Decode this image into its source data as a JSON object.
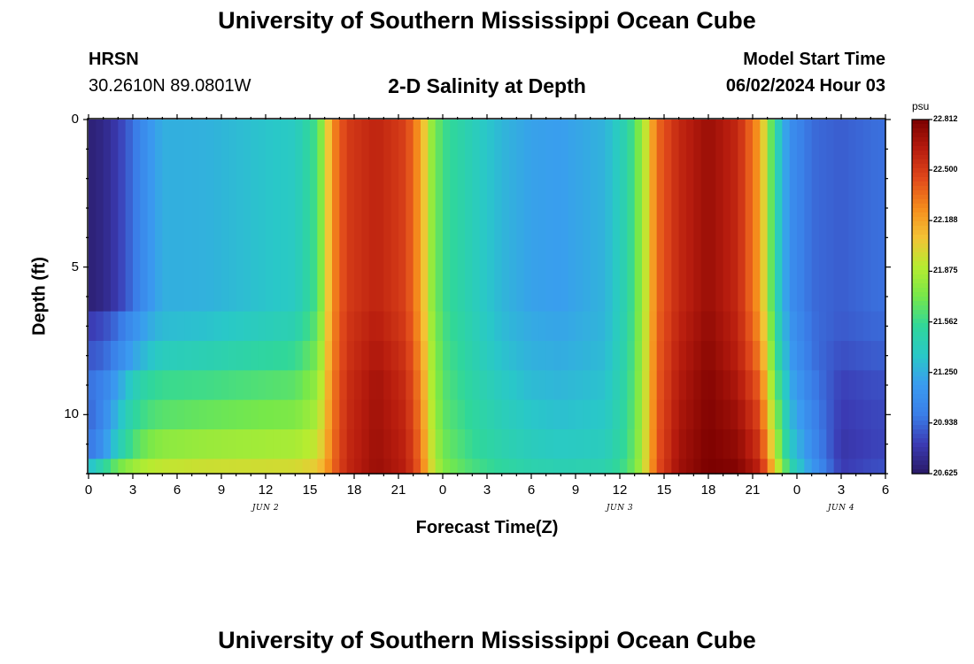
{
  "page_title_top": "University of Southern Mississippi Ocean Cube",
  "page_title_bottom": "University of Southern Mississippi Ocean Cube",
  "station": {
    "code": "HRSN",
    "coords": "30.2610N  89.0801W"
  },
  "plot_title": "2-D Salinity at Depth",
  "model": {
    "label": "Model Start Time",
    "time": "06/02/2024 Hour 03"
  },
  "colors": {
    "scale": [
      "#2a1a66",
      "#3b3bb4",
      "#3a7ee8",
      "#3a9bf0",
      "#29c8c8",
      "#30d79a",
      "#76e84a",
      "#b6ec30",
      "#f4c335",
      "#f58b1c",
      "#e0481b",
      "#b71c0e",
      "#7a0000"
    ]
  },
  "chart_data": {
    "type": "heatmap",
    "title": "2-D Salinity at Depth",
    "xlabel": "Forecast Time(Z)",
    "ylabel": "Depth (ft)",
    "xlim": [
      0,
      54
    ],
    "ylim": [
      0,
      12
    ],
    "x_tick_values": [
      0,
      3,
      6,
      9,
      12,
      15,
      18,
      21,
      24,
      27,
      30,
      33,
      36,
      39,
      42,
      45,
      48,
      51,
      54
    ],
    "x_tick_labels": [
      "0",
      "3",
      "6",
      "9",
      "12",
      "15",
      "18",
      "21",
      "0",
      "3",
      "6",
      "9",
      "12",
      "15",
      "18",
      "21",
      "0",
      "3",
      "6"
    ],
    "y_tick_values": [
      0,
      5,
      10
    ],
    "y_tick_labels": [
      "0",
      "5",
      "10"
    ],
    "date_labels": [
      {
        "label": "JUN 2",
        "x": 12
      },
      {
        "label": "JUN 3",
        "x": 36
      },
      {
        "label": "JUN 4",
        "x": 51
      }
    ],
    "colorbar": {
      "unit": "psu",
      "min": 20.625,
      "max": 22.812,
      "tick_values": [
        20.625,
        20.938,
        21.25,
        21.562,
        21.875,
        22.188,
        22.5,
        22.812
      ],
      "tick_labels": [
        "20.625",
        "20.938",
        "21.250",
        "21.562",
        "21.875",
        "22.188",
        "22.500",
        "22.812"
      ]
    },
    "time_hours": [
      0,
      0.5,
      1,
      1.5,
      2,
      2.5,
      3,
      3.5,
      4,
      4.5,
      5,
      5.5,
      6,
      6.5,
      7,
      7.5,
      8,
      8.5,
      9,
      9.5,
      10,
      10.5,
      11,
      11.5,
      12,
      12.5,
      13,
      13.5,
      14,
      14.5,
      15,
      15.5,
      16,
      16.5,
      17,
      17.5,
      18,
      18.5,
      19,
      19.5,
      20,
      20.5,
      21,
      21.5,
      22,
      22.5,
      23,
      23.5,
      24,
      24.5,
      25,
      25.5,
      26,
      26.5,
      27,
      27.5,
      28,
      28.5,
      29,
      29.5,
      30,
      30.5,
      31,
      31.5,
      32,
      32.5,
      33,
      33.5,
      34,
      34.5,
      35,
      35.5,
      36,
      36.5,
      37,
      37.5,
      38,
      38.5,
      39,
      39.5,
      40,
      40.5,
      41,
      41.5,
      42,
      42.5,
      43,
      43.5,
      44,
      44.5,
      45,
      45.5,
      46,
      46.5,
      47,
      47.5,
      48,
      48.5,
      49,
      49.5,
      50,
      50.5,
      51,
      51.5,
      52,
      52.5,
      53,
      53.5
    ],
    "depth_bands_ft": [
      [
        0,
        6.5
      ],
      [
        6.5,
        7.5
      ],
      [
        7.5,
        8.5
      ],
      [
        8.5,
        9.5
      ],
      [
        9.5,
        10.5
      ],
      [
        10.5,
        11.5
      ],
      [
        11.5,
        12
      ]
    ],
    "profile_keyframes": [
      {
        "t": 0,
        "s": [
          20.66,
          20.8,
          20.88,
          20.95,
          20.92,
          20.95,
          21.3
        ]
      },
      {
        "t": 1,
        "s": [
          20.7,
          20.85,
          20.92,
          21.02,
          21.05,
          21.12,
          21.5
        ]
      },
      {
        "t": 2,
        "s": [
          20.8,
          20.95,
          21.05,
          21.2,
          21.3,
          21.4,
          21.7
        ]
      },
      {
        "t": 3,
        "s": [
          20.95,
          21.1,
          21.2,
          21.4,
          21.5,
          21.6,
          21.82
        ]
      },
      {
        "t": 4,
        "s": [
          21.12,
          21.22,
          21.32,
          21.52,
          21.6,
          21.72,
          21.9
        ]
      },
      {
        "t": 5,
        "s": [
          21.25,
          21.3,
          21.4,
          21.56,
          21.64,
          21.78,
          21.93
        ]
      },
      {
        "t": 8,
        "s": [
          21.26,
          21.33,
          21.44,
          21.58,
          21.68,
          21.82,
          21.96
        ]
      },
      {
        "t": 14,
        "s": [
          21.38,
          21.45,
          21.55,
          21.65,
          21.74,
          21.86,
          21.98
        ]
      },
      {
        "t": 15.5,
        "s": [
          21.6,
          21.66,
          21.72,
          21.8,
          21.86,
          21.94,
          22.05
        ]
      },
      {
        "t": 16,
        "s": [
          21.9,
          21.94,
          21.98,
          22.02,
          22.06,
          22.1,
          22.18
        ]
      },
      {
        "t": 16.5,
        "s": [
          22.25,
          22.26,
          22.27,
          22.29,
          22.3,
          22.32,
          22.34
        ]
      },
      {
        "t": 17.5,
        "s": [
          22.5,
          22.52,
          22.53,
          22.55,
          22.56,
          22.57,
          22.58
        ]
      },
      {
        "t": 19.5,
        "s": [
          22.6,
          22.63,
          22.66,
          22.69,
          22.7,
          22.71,
          22.72
        ]
      },
      {
        "t": 21.5,
        "s": [
          22.48,
          22.5,
          22.53,
          22.56,
          22.58,
          22.6,
          22.62
        ]
      },
      {
        "t": 22.5,
        "s": [
          22.2,
          22.22,
          22.25,
          22.28,
          22.3,
          22.33,
          22.36
        ]
      },
      {
        "t": 23.2,
        "s": [
          21.82,
          21.85,
          21.88,
          21.9,
          21.93,
          21.96,
          22.0
        ]
      },
      {
        "t": 24,
        "s": [
          21.58,
          21.6,
          21.62,
          21.64,
          21.66,
          21.7,
          21.75
        ]
      },
      {
        "t": 26,
        "s": [
          21.42,
          21.44,
          21.46,
          21.49,
          21.52,
          21.55,
          21.6
        ]
      },
      {
        "t": 28,
        "s": [
          21.28,
          21.3,
          21.33,
          21.38,
          21.42,
          21.46,
          21.52
        ]
      },
      {
        "t": 30,
        "s": [
          21.2,
          21.23,
          21.26,
          21.3,
          21.35,
          21.4,
          21.46
        ]
      },
      {
        "t": 32,
        "s": [
          21.18,
          21.21,
          21.24,
          21.28,
          21.32,
          21.37,
          21.44
        ]
      },
      {
        "t": 35,
        "s": [
          21.27,
          21.28,
          21.3,
          21.33,
          21.36,
          21.4,
          21.46
        ]
      },
      {
        "t": 36.5,
        "s": [
          21.48,
          21.49,
          21.5,
          21.52,
          21.54,
          21.56,
          21.6
        ]
      },
      {
        "t": 37.5,
        "s": [
          21.8,
          21.81,
          21.82,
          21.83,
          21.84,
          21.85,
          21.87
        ]
      },
      {
        "t": 38.5,
        "s": [
          22.35,
          22.36,
          22.37,
          22.38,
          22.39,
          22.4,
          22.42
        ]
      },
      {
        "t": 40,
        "s": [
          22.58,
          22.6,
          22.62,
          22.64,
          22.66,
          22.68,
          22.7
        ]
      },
      {
        "t": 42,
        "s": [
          22.72,
          22.74,
          22.76,
          22.78,
          22.79,
          22.8,
          22.81
        ]
      },
      {
        "t": 44,
        "s": [
          22.58,
          22.6,
          22.62,
          22.66,
          22.7,
          22.74,
          22.78
        ]
      },
      {
        "t": 45.5,
        "s": [
          22.2,
          22.24,
          22.3,
          22.38,
          22.45,
          22.52,
          22.6
        ]
      },
      {
        "t": 46.5,
        "s": [
          21.5,
          21.56,
          21.62,
          21.7,
          21.8,
          21.9,
          22.05
        ]
      },
      {
        "t": 47.5,
        "s": [
          21.1,
          21.14,
          21.18,
          21.24,
          21.3,
          21.38,
          21.5
        ]
      },
      {
        "t": 49,
        "s": [
          20.94,
          20.95,
          20.96,
          21.0,
          21.04,
          21.08,
          21.15
        ]
      },
      {
        "t": 51,
        "s": [
          20.9,
          20.89,
          20.86,
          20.82,
          20.8,
          20.78,
          20.8
        ]
      },
      {
        "t": 53.5,
        "s": [
          20.95,
          20.93,
          20.9,
          20.86,
          20.84,
          20.83,
          20.86
        ]
      }
    ]
  }
}
